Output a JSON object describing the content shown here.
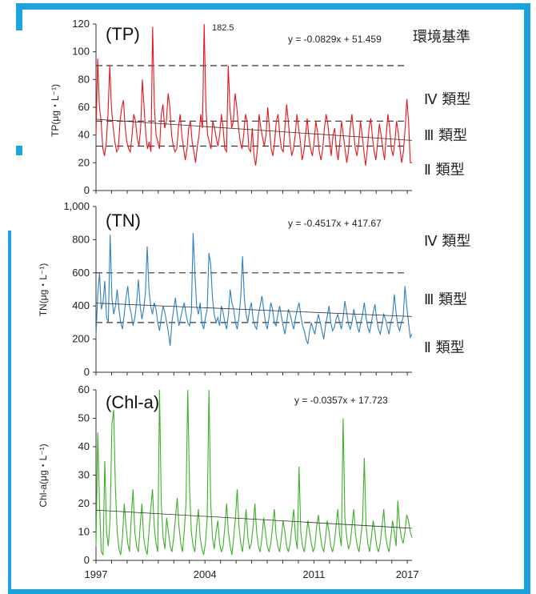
{
  "chart_data": [
    {
      "type": "line",
      "title": "(TP)",
      "ylabel": "TP(μg・L⁻¹)",
      "ylim": [
        0,
        120
      ],
      "yticks": [
        "0",
        "20",
        "40",
        "60",
        "80",
        "100",
        "120"
      ],
      "xlim": [
        1997,
        2017.3
      ],
      "trend_equation": "y = -0.0829x + 51.459",
      "trend": {
        "slope_per_month": -0.0829,
        "intercept": 51.459
      },
      "peak_label": "182.5",
      "reference_lines": [
        90,
        50,
        32
      ],
      "standard_labels": [
        "環境基準",
        "Ⅳ 類型",
        "Ⅲ 類型",
        "Ⅱ 類型"
      ],
      "color": "#e8141b",
      "series": [
        {
          "values": [
            40,
            95,
            60,
            50,
            30,
            25,
            35,
            55,
            90,
            60,
            45,
            35,
            28,
            30,
            50,
            60,
            65,
            45,
            35,
            30,
            28,
            40,
            55,
            50,
            38,
            32,
            45,
            80,
            60,
            40,
            30,
            35,
            28,
            118,
            60,
            40,
            35,
            30,
            55,
            62,
            45,
            50,
            70,
            60,
            40,
            32,
            28,
            30,
            45,
            55,
            40,
            30,
            22,
            30,
            45,
            50,
            35,
            28,
            20,
            32,
            40,
            55,
            45,
            182.5,
            60,
            40,
            35,
            30,
            50,
            45,
            38,
            32,
            40,
            55,
            45,
            30,
            28,
            90,
            60,
            45,
            50,
            70,
            60,
            45,
            35,
            30,
            40,
            55,
            50,
            30,
            28,
            45,
            25,
            18,
            30,
            55,
            45,
            38,
            32,
            40,
            60,
            45,
            30,
            25,
            35,
            50,
            55,
            40,
            30,
            28,
            45,
            62,
            50,
            35,
            25,
            30,
            40,
            55,
            45,
            35,
            22,
            28,
            40,
            52,
            38,
            30,
            25,
            35,
            50,
            42,
            28,
            22,
            30,
            45,
            55,
            48,
            35,
            25,
            40,
            45,
            30,
            22,
            35,
            50,
            40,
            30,
            20,
            28,
            45,
            55,
            42,
            30,
            25,
            35,
            50,
            40,
            28,
            18,
            30,
            45,
            52,
            38,
            28,
            22,
            35,
            48,
            40,
            30,
            22,
            40,
            55,
            45,
            30,
            25,
            35,
            50,
            42,
            30,
            20,
            28,
            45,
            66,
            50,
            20,
            20
          ]
        }
      ]
    },
    {
      "type": "line",
      "title": "(TN)",
      "ylabel": "TN(μg・L⁻¹)",
      "ylim": [
        0,
        1000
      ],
      "yticks": [
        "0",
        "200",
        "400",
        "600",
        "800",
        "1,000"
      ],
      "xlim": [
        1997,
        2017.3
      ],
      "trend_equation": "y = -0.4517x + 417.67",
      "trend": {
        "slope_per_month": -0.4517,
        "intercept": 417.67
      },
      "reference_lines": [
        600,
        300
      ],
      "standard_labels": [
        "Ⅳ 類型",
        "Ⅲ 類型",
        "Ⅱ 類型"
      ],
      "color": "#2f7fc1",
      "series": [
        {
          "values": [
            220,
            470,
            600,
            380,
            420,
            550,
            330,
            300,
            830,
            450,
            350,
            400,
            500,
            380,
            300,
            260,
            350,
            450,
            520,
            400,
            350,
            280,
            330,
            420,
            560,
            400,
            320,
            380,
            480,
            760,
            500,
            400,
            350,
            420,
            380,
            300,
            250,
            330,
            400,
            360,
            300,
            240,
            160,
            300,
            380,
            450,
            350,
            280,
            330,
            380,
            420,
            350,
            300,
            280,
            360,
            840,
            600,
            400,
            350,
            420,
            300,
            260,
            330,
            380,
            720,
            650,
            450,
            350,
            300,
            330,
            280,
            400,
            360,
            300,
            260,
            350,
            500,
            420,
            380,
            300,
            260,
            330,
            450,
            700,
            450,
            350,
            300,
            380,
            420,
            320,
            280,
            260,
            350,
            400,
            460,
            380,
            300,
            260,
            330,
            420,
            380,
            300,
            280,
            350,
            400,
            340,
            280,
            230,
            300,
            380,
            350,
            300,
            260,
            330,
            380,
            420,
            340,
            280,
            250,
            200,
            170,
            250,
            300,
            260,
            230,
            300,
            350,
            300,
            250,
            200,
            280,
            340,
            400,
            300,
            250,
            270,
            320,
            350,
            300,
            260,
            330,
            430,
            360,
            290,
            260,
            300,
            380,
            330,
            280,
            240,
            300,
            350,
            420,
            330,
            270,
            240,
            300,
            360,
            410,
            320,
            260,
            230,
            290,
            350,
            320,
            270,
            230,
            300,
            340,
            470,
            360,
            280,
            250,
            300,
            330,
            520,
            400,
            300,
            210,
            230
          ]
        }
      ]
    },
    {
      "type": "line",
      "title": "(Chl-a)",
      "ylabel": "Chl-a(μg・L⁻¹)",
      "ylim": [
        0,
        60
      ],
      "yticks": [
        "0",
        "10",
        "20",
        "30",
        "40",
        "50",
        "60"
      ],
      "xlim": [
        1997,
        2017.3
      ],
      "xticks": [
        "1997",
        "2004",
        "2011",
        "2017"
      ],
      "trend_equation": "y = -0.0357x + 17.723",
      "trend": {
        "slope_per_month": -0.0357,
        "intercept": 17.723
      },
      "color": "#3fae2a",
      "series": [
        {
          "values": [
            5,
            45,
            20,
            3,
            2,
            35,
            10,
            5,
            15,
            48,
            53,
            25,
            10,
            4,
            2,
            8,
            20,
            12,
            6,
            3,
            15,
            25,
            10,
            5,
            3,
            12,
            20,
            8,
            4,
            2,
            10,
            18,
            25,
            12,
            6,
            3,
            60,
            20,
            8,
            4,
            15,
            10,
            5,
            3,
            8,
            15,
            22,
            12,
            6,
            3,
            10,
            20,
            60,
            25,
            10,
            5,
            3,
            12,
            18,
            8,
            4,
            2,
            6,
            15,
            60,
            20,
            8,
            4,
            10,
            14,
            6,
            3,
            5,
            12,
            20,
            10,
            5,
            2,
            8,
            15,
            25,
            12,
            6,
            3,
            10,
            18,
            8,
            4,
            6,
            12,
            20,
            10,
            5,
            3,
            8,
            15,
            10,
            5,
            3,
            6,
            12,
            18,
            9,
            5,
            3,
            8,
            14,
            10,
            5,
            3,
            6,
            12,
            18,
            8,
            4,
            33,
            10,
            5,
            3,
            8,
            14,
            10,
            6,
            3,
            5,
            12,
            16,
            9,
            5,
            3,
            8,
            14,
            10,
            5,
            3,
            6,
            12,
            18,
            9,
            5,
            50,
            15,
            8,
            4,
            6,
            12,
            18,
            9,
            5,
            3,
            8,
            14,
            36,
            12,
            6,
            3,
            8,
            14,
            10,
            5,
            3,
            6,
            12,
            18,
            9,
            5,
            3,
            8,
            14,
            10,
            5,
            21,
            12,
            8,
            6,
            10,
            16,
            14,
            10,
            8
          ]
        }
      ]
    }
  ]
}
